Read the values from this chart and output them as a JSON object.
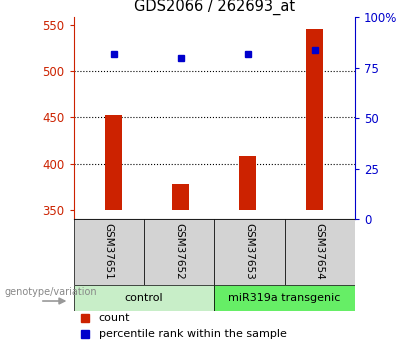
{
  "title": "GDS2066 / 262693_at",
  "samples": [
    "GSM37651",
    "GSM37652",
    "GSM37653",
    "GSM37654"
  ],
  "counts": [
    452,
    378,
    408,
    545
  ],
  "percentiles": [
    82,
    80,
    82,
    84
  ],
  "ylim_left": [
    340,
    558
  ],
  "ylim_right": [
    0,
    100
  ],
  "yticks_left": [
    350,
    400,
    450,
    500,
    550
  ],
  "yticks_right": [
    0,
    25,
    50,
    75,
    100
  ],
  "groups": [
    {
      "label": "control",
      "color": "#c8eec8"
    },
    {
      "label": "miR319a transgenic",
      "color": "#66ee66"
    }
  ],
  "bar_color": "#cc2200",
  "dot_color": "#0000cc",
  "bar_bottom": 350,
  "left_tick_color": "#cc2200",
  "right_tick_color": "#0000cc",
  "sample_cell_color": "#d3d3d3",
  "legend_dot_color": "#0000cc",
  "legend_bar_color": "#cc2200",
  "bar_width": 0.25,
  "figsize": [
    4.2,
    3.45
  ],
  "dpi": 100
}
